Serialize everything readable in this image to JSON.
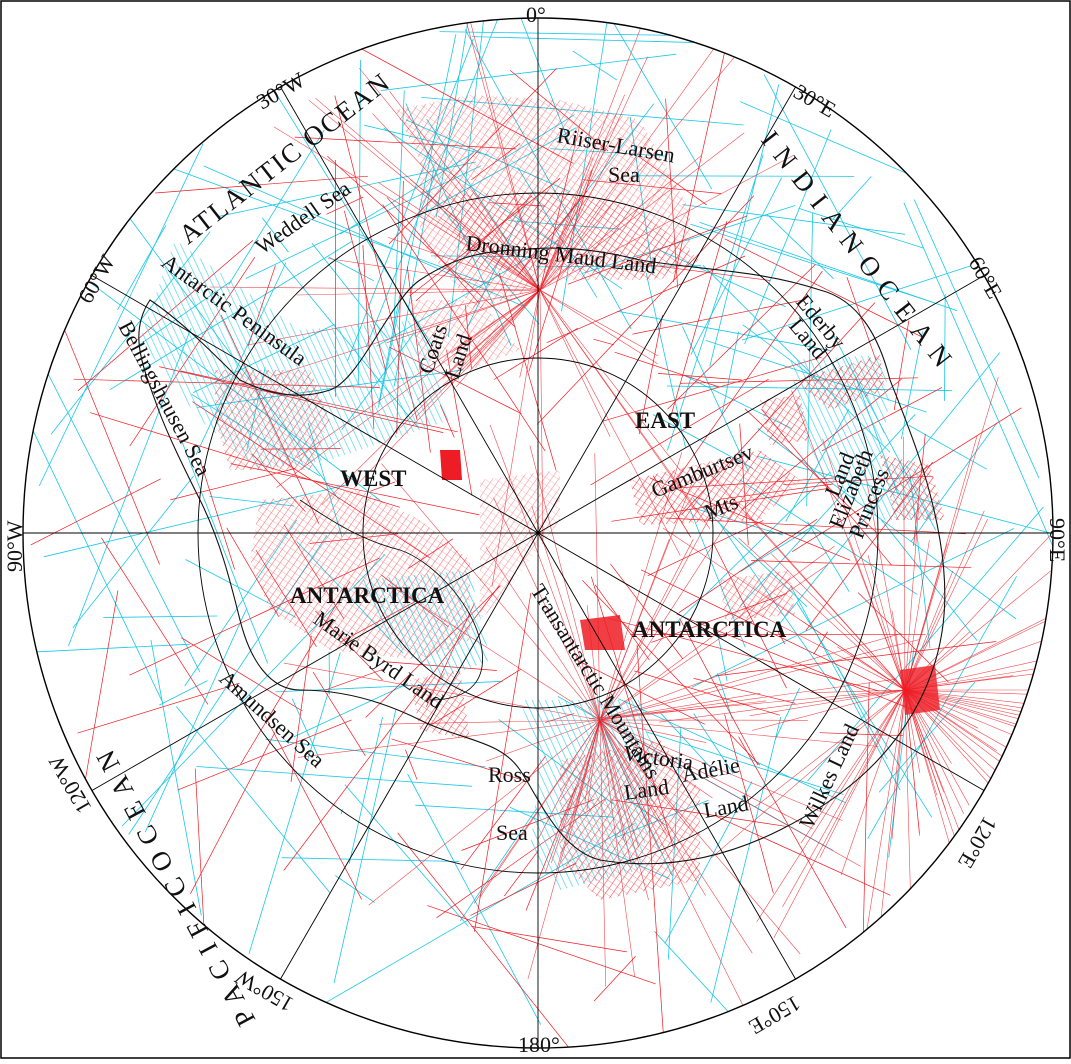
{
  "degree_labels": {
    "d0": "0°",
    "d30e": "30°E",
    "d60e": "60°E",
    "d90e": "90°E",
    "d120e": "120°E",
    "d150e": "150°E",
    "d180": "180°",
    "d150w": "150°W",
    "d120w": "120°W",
    "d90w": "90°W",
    "d60w": "60°W",
    "d30w": "30°W"
  },
  "oceans": {
    "atlantic": "ATLANTIC OCEAN",
    "indian": "I N D I A N   O C E A N",
    "pacific": "P A C I F I C   O C E A N"
  },
  "regions": {
    "weddell": "Weddell Sea",
    "riiser1": "Riiser-Larsen",
    "riiser2": "Sea",
    "dronning": "Dronning Maud Land",
    "ederby1": "Ederby",
    "ederby2": "Land",
    "coats1": "Coats",
    "coats2": "Land",
    "peninsula": "Antarctic Peninsula",
    "bellingshausen": "Bellingshausen Sea",
    "east": "EAST",
    "west": "WEST",
    "gamburtsev1": "Gamburtsev",
    "gamburtsev2": "Mts",
    "princess1": "Princess",
    "princess2": "Elizabeth",
    "princess3": "Land",
    "antarctica_w": "ANTARCTICA",
    "antarctica_e": "ANTARCTICA",
    "transantarctic": "Transantarctic Mountains",
    "marie_byrd": "Marie Byrd Land",
    "wilkes": "Wilkes Land",
    "amundsen": "Amundsen Sea",
    "ross1": "Ross",
    "ross2": "Sea",
    "victoria1": "Victoria",
    "victoria2": "Land",
    "adelie1": "Adélie",
    "adelie2": "Land"
  },
  "colors": {
    "cyan_tracks": "#19c8e6",
    "red_tracks": "#ee1c24",
    "grid": "#000000"
  }
}
